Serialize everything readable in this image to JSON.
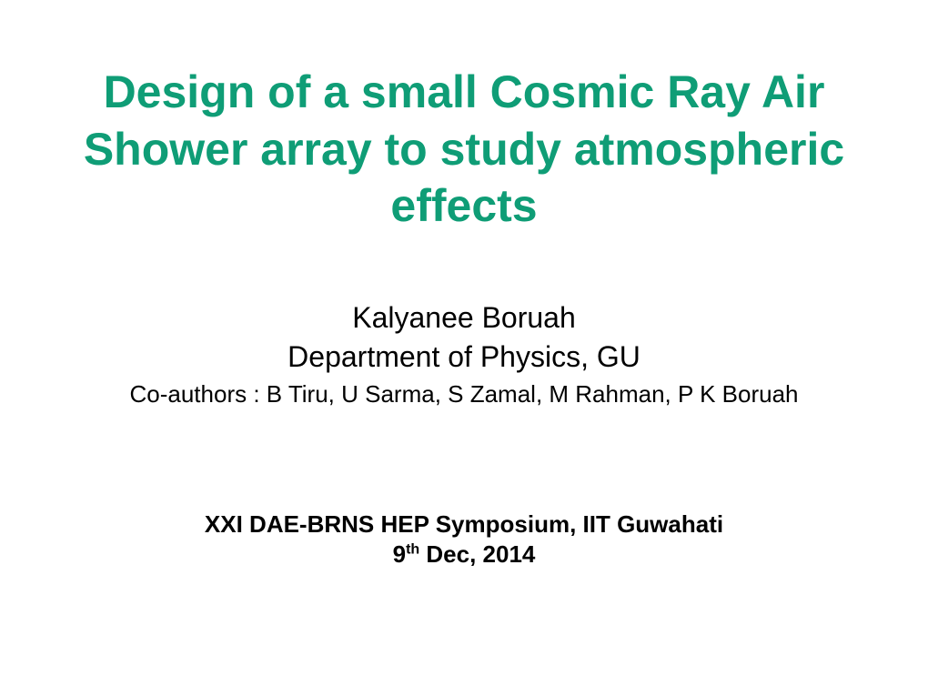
{
  "slide": {
    "title": "Design of a small Cosmic Ray Air Shower array to study atmospheric effects",
    "author_name": "Kalyanee Boruah",
    "department": "Department of Physics, GU",
    "coauthors": "Co-authors : B Tiru, U Sarma, S Zamal, M Rahman, P K Boruah",
    "venue": "XXI DAE-BRNS HEP Symposium, IIT Guwahati",
    "date_day": "9",
    "date_suffix": "th",
    "date_rest": " Dec, 2014"
  },
  "styles": {
    "background_color": "#ffffff",
    "title_color": "#0f9d76",
    "text_color": "#000000",
    "title_fontsize": 50,
    "author_fontsize": 32,
    "coauthor_fontsize": 26,
    "venue_fontsize": 26,
    "title_fontweight": "bold",
    "venue_fontweight": "bold"
  }
}
